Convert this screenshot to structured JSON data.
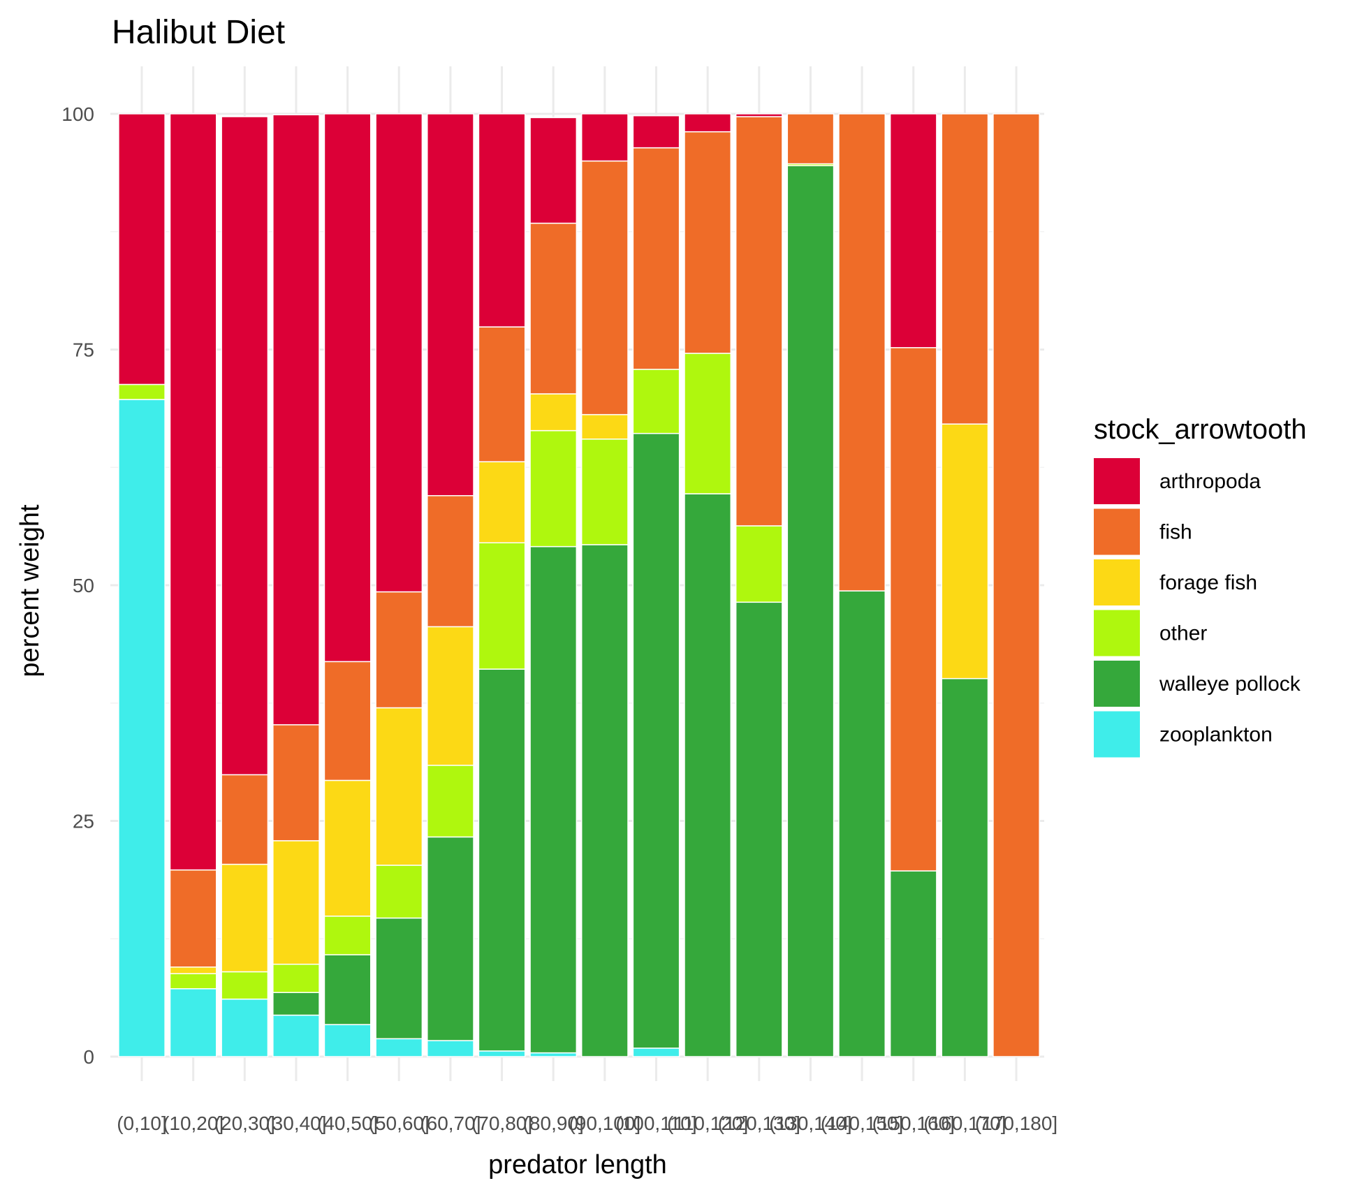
{
  "chart_data": {
    "type": "bar",
    "stacked": true,
    "title": "Halibut Diet",
    "xlabel": "predator length",
    "ylabel": "percent weight",
    "ylim": [
      0,
      100
    ],
    "yticks": [
      0,
      25,
      50,
      75,
      100
    ],
    "grid": true,
    "legend": {
      "title": "stock_arrowtooth",
      "position": "right"
    },
    "categories": [
      "(0,10]",
      "(10,20]",
      "(20,30]",
      "(30,40]",
      "(40,50]",
      "(50,60]",
      "(60,70]",
      "(70,80]",
      "(80,90]",
      "(90,100]",
      "(100,110]",
      "(110,120]",
      "(120,130]",
      "(130,140]",
      "(140,150]",
      "(150,160]",
      "(160,170]",
      "(170,180]"
    ],
    "series": [
      {
        "name": "arthropoda",
        "color": "#DC0037",
        "values": [
          28.7,
          80.2,
          69.8,
          64.7,
          58.1,
          50.7,
          40.5,
          22.6,
          11.2,
          5.0,
          3.4,
          1.9,
          0.3,
          0,
          0,
          24.8,
          0,
          0
        ]
      },
      {
        "name": "fish",
        "color": "#EF6C28",
        "values": [
          0,
          10.3,
          9.5,
          12.3,
          12.6,
          12.3,
          13.9,
          14.3,
          18.1,
          26.9,
          23.5,
          23.5,
          43.4,
          5.3,
          50.6,
          55.5,
          32.9,
          100
        ]
      },
      {
        "name": "forage fish",
        "color": "#FCD915",
        "values": [
          0,
          0.7,
          11.4,
          13.1,
          14.4,
          16.7,
          14.7,
          8.6,
          3.9,
          2.6,
          0,
          0,
          0,
          0,
          0,
          0,
          27.0,
          0
        ]
      },
      {
        "name": "other",
        "color": "#AFF70E",
        "values": [
          1.6,
          1.6,
          2.9,
          3.0,
          4.1,
          5.6,
          7.6,
          13.4,
          12.3,
          11.2,
          6.8,
          14.9,
          8.1,
          0.2,
          0,
          0,
          0,
          0
        ]
      },
      {
        "name": "walleye pollock",
        "color": "#35A83B",
        "values": [
          0,
          0,
          0,
          2.4,
          7.4,
          12.8,
          21.6,
          40.5,
          53.7,
          54.3,
          65.2,
          59.7,
          48.2,
          94.5,
          49.4,
          19.7,
          40.1,
          0
        ]
      },
      {
        "name": "zooplankton",
        "color": "#3FEDEA",
        "values": [
          69.7,
          7.2,
          6.1,
          4.4,
          3.4,
          1.9,
          1.7,
          0.6,
          0.4,
          0,
          0.9,
          0,
          0,
          0,
          0,
          0,
          0,
          0
        ]
      }
    ]
  }
}
